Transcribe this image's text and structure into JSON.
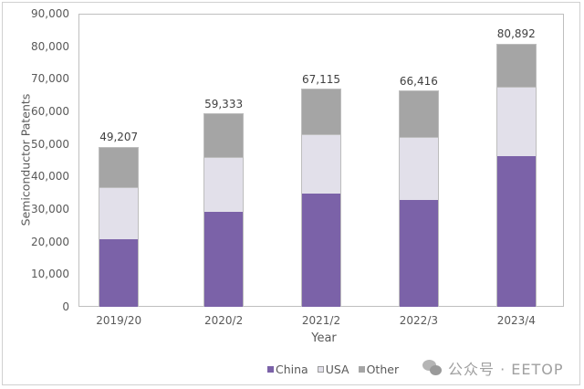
{
  "chart_data": {
    "type": "bar",
    "stacked": true,
    "title": "",
    "xlabel": "Year",
    "ylabel": "Semiconductor Patents",
    "ylim": [
      0,
      90000
    ],
    "yticks": [
      "0",
      "10,000",
      "20,000",
      "30,000",
      "40,000",
      "50,000",
      "60,000",
      "70,000",
      "80,000",
      "90,000"
    ],
    "grid": false,
    "legend_position": "bottom",
    "categories": [
      "2019/20",
      "2020/2",
      "2021/2",
      "2022/3",
      "2023/4"
    ],
    "series": [
      {
        "name": "China",
        "color": "#7b62a8",
        "values": [
          20800,
          29200,
          34800,
          32800,
          46300
        ]
      },
      {
        "name": "USA",
        "color": "#e2e0ea",
        "values": [
          15900,
          16800,
          18200,
          19400,
          21300
        ]
      },
      {
        "name": "Other",
        "color": "#a5a5a5",
        "values": [
          12507,
          13333,
          14115,
          14216,
          13292
        ]
      }
    ],
    "totals": [
      49207,
      59333,
      67115,
      66416,
      80892
    ],
    "total_labels": [
      "49,207",
      "59,333",
      "67,115",
      "66,416",
      "80,892"
    ]
  },
  "legend": {
    "items": [
      {
        "label": "China",
        "color": "#7b62a8"
      },
      {
        "label": "USA",
        "color": "#e2e0ea"
      },
      {
        "label": "Other",
        "color": "#a5a5a5"
      }
    ]
  },
  "watermark": {
    "text": "公众号 · EETOP",
    "icon": "wechat-icon"
  }
}
